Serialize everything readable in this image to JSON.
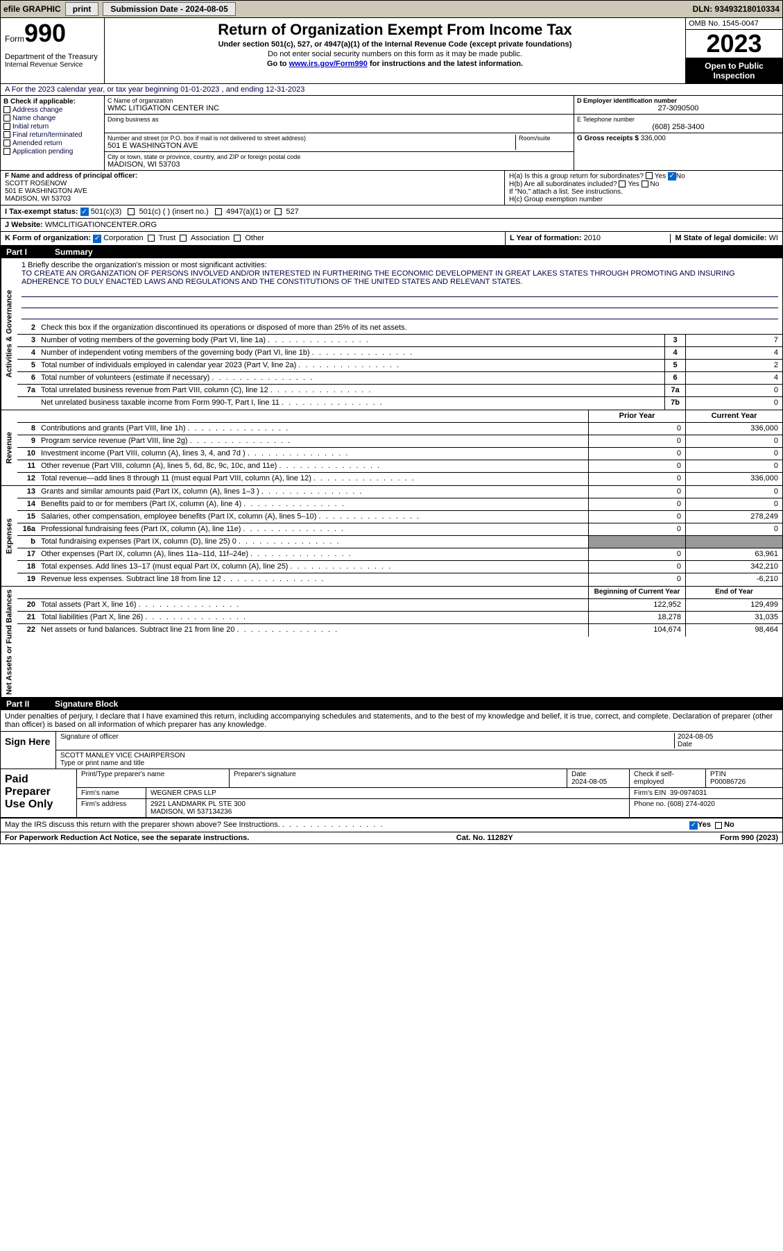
{
  "header": {
    "efile_label": "efile GRAPHIC",
    "print_btn": "print",
    "sub_date_label": "Submission Date - 2024-08-05",
    "dln": "DLN: 93493218010334"
  },
  "form": {
    "form_word": "Form",
    "form_num": "990",
    "dept": "Department of the Treasury",
    "irs": "Internal Revenue Service",
    "title": "Return of Organization Exempt From Income Tax",
    "subtitle1": "Under section 501(c), 527, or 4947(a)(1) of the Internal Revenue Code (except private foundations)",
    "subtitle2": "Do not enter social security numbers on this form as it may be made public.",
    "goto": "Go to ",
    "goto_link": "www.irs.gov/Form990",
    "goto_after": " for instructions and the latest information.",
    "omb": "OMB No. 1545-0047",
    "year": "2023",
    "open_public": "Open to Public Inspection"
  },
  "line_a": "A For the 2023 calendar year, or tax year beginning 01-01-2023   , and ending 12-31-2023",
  "section_b": {
    "header": "B Check if applicable:",
    "opts": [
      "Address change",
      "Name change",
      "Initial return",
      "Final return/terminated",
      "Amended return",
      "Application pending"
    ]
  },
  "section_c": {
    "name_label": "C Name of organization",
    "name": "WMC LITIGATION CENTER INC",
    "dba_label": "Doing business as",
    "street_label": "Number and street (or P.O. box if mail is not delivered to street address)",
    "room_label": "Room/suite",
    "street": "501 E WASHINGTON AVE",
    "city_label": "City or town, state or province, country, and ZIP or foreign postal code",
    "city": "MADISON, WI  53703"
  },
  "section_d": {
    "label": "D Employer identification number",
    "value": "27-3090500"
  },
  "section_e": {
    "label": "E Telephone number",
    "value": "(608) 258-3400"
  },
  "section_g": {
    "label": "G Gross receipts $",
    "value": "336,000"
  },
  "section_f": {
    "label": "F  Name and address of principal officer:",
    "name": "SCOTT ROSENOW",
    "addr1": "501 E WASHINGTON AVE",
    "addr2": "MADISON, WI  53703"
  },
  "section_h": {
    "ha": "H(a)  Is this a group return for subordinates?",
    "hb": "H(b)  Are all subordinates included?",
    "hb_note": "If \"No,\" attach a list. See instructions.",
    "hc": "H(c)  Group exemption number",
    "yes": "Yes",
    "no": "No"
  },
  "row_i": {
    "label": "I   Tax-exempt status:",
    "o1": "501(c)(3)",
    "o2": "501(c) (  ) (insert no.)",
    "o3": "4947(a)(1) or",
    "o4": "527"
  },
  "row_j": {
    "label": "J   Website: ",
    "value": "WMCLITIGATIONCENTER.ORG"
  },
  "row_k": {
    "label": "K Form of organization:",
    "o1": "Corporation",
    "o2": "Trust",
    "o3": "Association",
    "o4": "Other",
    "l_label": "L Year of formation:",
    "l_val": "2010",
    "m_label": "M State of legal domicile:",
    "m_val": "WI"
  },
  "part1": {
    "label": "Part I",
    "title": "Summary"
  },
  "mission": {
    "prompt": "1   Briefly describe the organization's mission or most significant activities:",
    "text": "TO CREATE AN ORGANIZATION OF PERSONS INVOLVED AND/OR INTERESTED IN FURTHERING THE ECONOMIC DEVELOPMENT IN GREAT LAKES STATES THROUGH PROMOTING AND INSURING ADHERENCE TO DULY ENACTED LAWS AND REGULATIONS AND THE CONSTITUTIONS OF THE UNITED STATES AND RELEVANT STATES."
  },
  "line2": "Check this box      if the organization discontinued its operations or disposed of more than 25% of its net assets.",
  "governance_rows": [
    {
      "n": "3",
      "d": "Number of voting members of the governing body (Part VI, line 1a)",
      "box": "3",
      "v": "7"
    },
    {
      "n": "4",
      "d": "Number of independent voting members of the governing body (Part VI, line 1b)",
      "box": "4",
      "v": "4"
    },
    {
      "n": "5",
      "d": "Total number of individuals employed in calendar year 2023 (Part V, line 2a)",
      "box": "5",
      "v": "2"
    },
    {
      "n": "6",
      "d": "Total number of volunteers (estimate if necessary)",
      "box": "6",
      "v": "4"
    },
    {
      "n": "7a",
      "d": "Total unrelated business revenue from Part VIII, column (C), line 12",
      "box": "7a",
      "v": "0"
    },
    {
      "n": "",
      "d": "Net unrelated business taxable income from Form 990-T, Part I, line 11",
      "box": "7b",
      "v": "0"
    }
  ],
  "pycy": {
    "prior": "Prior Year",
    "current": "Current Year"
  },
  "revenue_rows": [
    {
      "n": "8",
      "d": "Contributions and grants (Part VIII, line 1h)",
      "p": "0",
      "c": "336,000"
    },
    {
      "n": "9",
      "d": "Program service revenue (Part VIII, line 2g)",
      "p": "0",
      "c": "0"
    },
    {
      "n": "10",
      "d": "Investment income (Part VIII, column (A), lines 3, 4, and 7d )",
      "p": "0",
      "c": "0"
    },
    {
      "n": "11",
      "d": "Other revenue (Part VIII, column (A), lines 5, 6d, 8c, 9c, 10c, and 11e)",
      "p": "0",
      "c": "0"
    },
    {
      "n": "12",
      "d": "Total revenue—add lines 8 through 11 (must equal Part VIII, column (A), line 12)",
      "p": "0",
      "c": "336,000"
    }
  ],
  "expense_rows": [
    {
      "n": "13",
      "d": "Grants and similar amounts paid (Part IX, column (A), lines 1–3 )",
      "p": "0",
      "c": "0"
    },
    {
      "n": "14",
      "d": "Benefits paid to or for members (Part IX, column (A), line 4)",
      "p": "0",
      "c": "0"
    },
    {
      "n": "15",
      "d": "Salaries, other compensation, employee benefits (Part IX, column (A), lines 5–10)",
      "p": "0",
      "c": "278,249"
    },
    {
      "n": "16a",
      "d": "Professional fundraising fees (Part IX, column (A), line 11e)",
      "p": "0",
      "c": "0"
    },
    {
      "n": "b",
      "d": "Total fundraising expenses (Part IX, column (D), line 25) 0",
      "p": "",
      "c": "",
      "gray": true
    },
    {
      "n": "17",
      "d": "Other expenses (Part IX, column (A), lines 11a–11d, 11f–24e)",
      "p": "0",
      "c": "63,961"
    },
    {
      "n": "18",
      "d": "Total expenses. Add lines 13–17 (must equal Part IX, column (A), line 25)",
      "p": "0",
      "c": "342,210"
    },
    {
      "n": "19",
      "d": "Revenue less expenses. Subtract line 18 from line 12",
      "p": "0",
      "c": "-6,210"
    }
  ],
  "netassets_hdr": {
    "begin": "Beginning of Current Year",
    "end": "End of Year"
  },
  "netassets_rows": [
    {
      "n": "20",
      "d": "Total assets (Part X, line 16)",
      "p": "122,952",
      "c": "129,499"
    },
    {
      "n": "21",
      "d": "Total liabilities (Part X, line 26)",
      "p": "18,278",
      "c": "31,035"
    },
    {
      "n": "22",
      "d": "Net assets or fund balances. Subtract line 21 from line 20",
      "p": "104,674",
      "c": "98,464"
    }
  ],
  "part2": {
    "label": "Part II",
    "title": "Signature Block"
  },
  "sig_text": "Under penalties of perjury, I declare that I have examined this return, including accompanying schedules and statements, and to the best of my knowledge and belief, it is true, correct, and complete. Declaration of preparer (other than officer) is based on all information of which preparer has any knowledge.",
  "sign": {
    "here": "Sign Here",
    "sig_label": "Signature of officer",
    "date": "2024-08-05",
    "date_label": "Date",
    "name": "SCOTT MANLEY VICE CHAIRPERSON",
    "type_label": "Type or print name and title"
  },
  "paid": {
    "title": "Paid Preparer Use Only",
    "p1": "Print/Type preparer's name",
    "p2": "Preparer's signature",
    "p3": "Date",
    "p3v": "2024-08-05",
    "p4": "Check      if self-employed",
    "p5": "PTIN",
    "p5v": "P00086726",
    "firm_label": "Firm's name",
    "firm": "WEGNER CPAS LLP",
    "ein_label": "Firm's EIN",
    "ein": "39-0974031",
    "addr_label": "Firm's address",
    "addr": "2921 LANDMARK PL STE 300",
    "addr2": "MADISON, WI  537134236",
    "phone_label": "Phone no.",
    "phone": "(608) 274-4020"
  },
  "discuss": "May the IRS discuss this return with the preparer shown above? See Instructions.",
  "footer": {
    "left": "For Paperwork Reduction Act Notice, see the separate instructions.",
    "mid": "Cat. No. 11282Y",
    "right": "Form 990 (2023)"
  },
  "vtabs": {
    "gov": "Activities & Governance",
    "rev": "Revenue",
    "exp": "Expenses",
    "net": "Net Assets or Fund Balances"
  }
}
